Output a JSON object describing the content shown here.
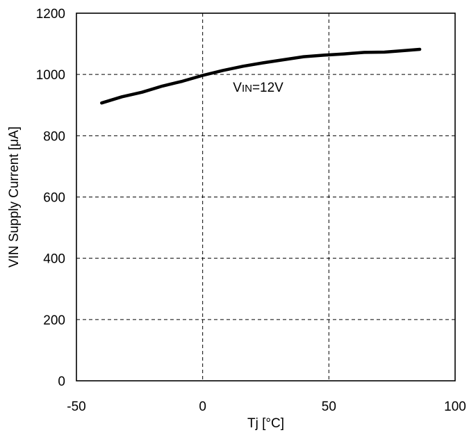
{
  "chart_data": {
    "type": "line",
    "xlabel": "Tj [°C]",
    "ylabel": "VIN Supply Current [μA]",
    "xlim": [
      -50,
      100
    ],
    "ylim": [
      0,
      1200
    ],
    "x_ticks": [
      -50,
      0,
      50,
      100
    ],
    "y_ticks": [
      0,
      200,
      400,
      600,
      800,
      1000,
      1200
    ],
    "grid": true,
    "series": [
      {
        "x": [
          -40,
          -32,
          -24,
          -16,
          -8,
          0,
          8,
          16,
          24,
          32,
          40,
          48,
          56,
          64,
          72,
          80,
          86
        ],
        "y": [
          907,
          927,
          942,
          962,
          978,
          997,
          1013,
          1027,
          1038,
          1048,
          1058,
          1063,
          1067,
          1072,
          1073,
          1078,
          1082
        ],
        "color": "#000000"
      }
    ],
    "annotation": {
      "prefix": "V",
      "subscript": "IN",
      "suffix": "=12V",
      "x": 12,
      "y": 960
    }
  }
}
